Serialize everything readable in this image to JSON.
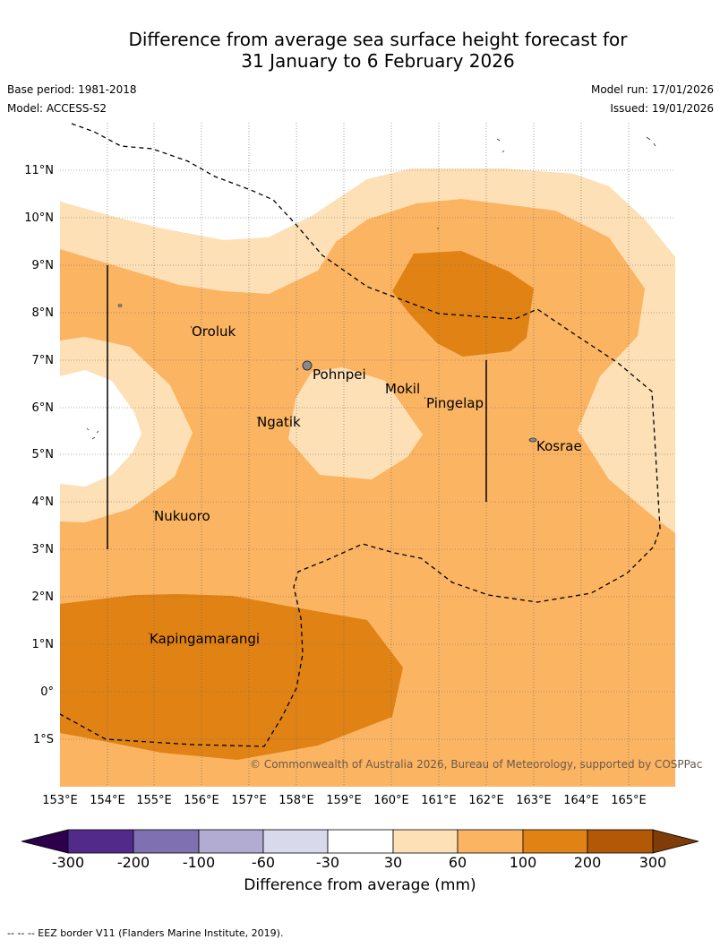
{
  "header": {
    "title_line1": "Difference from average sea surface height forecast for",
    "title_line2": "31 January to 6 February 2026",
    "base_period": "Base period: 1981-2018",
    "model": "Model: ACCESS-S2",
    "model_run": "Model run: 17/01/2026",
    "issued": "Issued: 19/01/2026"
  },
  "map": {
    "lat_labels": [
      "11°N",
      "10°N",
      "9°N",
      "8°N",
      "7°N",
      "6°N",
      "5°N",
      "4°N",
      "3°N",
      "2°N",
      "1°N",
      "0°",
      "1°S"
    ],
    "lon_labels": [
      "153°E",
      "154°E",
      "155°E",
      "156°E",
      "157°E",
      "158°E",
      "159°E",
      "160°E",
      "161°E",
      "162°E",
      "163°E",
      "164°E",
      "165°E"
    ],
    "places": [
      "Oroluk",
      "Pohnpei",
      "Mokil",
      "Pingelap",
      "Ngatik",
      "Kosrae",
      "Nukuoro",
      "Kapingamarangi"
    ],
    "copyright": "© Commonwealth of Australia 2026, Bureau of Meteorology, supported by COSPPac"
  },
  "colorbar": {
    "ticks": [
      "-300",
      "-200",
      "-100",
      "-60",
      "-30",
      "30",
      "60",
      "100",
      "200",
      "300"
    ],
    "colors": [
      "#522a8a",
      "#7f70b1",
      "#b2abd2",
      "#d8daeb",
      "#ffffff",
      "#fee0b6",
      "#fbb462",
      "#e08214",
      "#b35806"
    ],
    "under_color": "#2d004b",
    "over_color": "#7f3b08",
    "label": "Difference from average (mm)"
  },
  "footer": {
    "eez_note": "--  --  -- EEZ border V11 (Flanders Marine Institute, 2019)."
  }
}
